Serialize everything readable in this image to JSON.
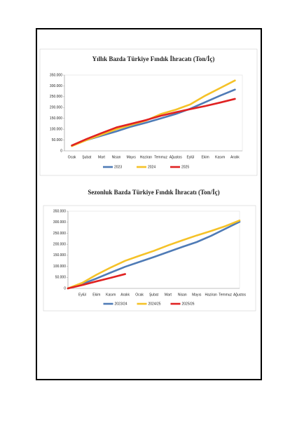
{
  "chart_data": [
    {
      "type": "line",
      "title": "Yıllık Bazda Türkiye Fındık İhracatı (Ton/İç)",
      "categories": [
        "Ocak",
        "Şubat",
        "Mart",
        "Nisan",
        "Mayıs",
        "Haziran",
        "Temmuz",
        "Ağustos",
        "Eylül",
        "Ekim",
        "Kasım",
        "Aralık"
      ],
      "series": [
        {
          "name": "2023",
          "color": "#4f7bb6",
          "values": [
            25000,
            50000,
            70000,
            90000,
            112000,
            130000,
            150000,
            170000,
            195000,
            225000,
            255000,
            283000
          ]
        },
        {
          "name": "2024",
          "color": "#f5c228",
          "values": [
            22000,
            50000,
            75000,
            100000,
            120000,
            140000,
            170000,
            190000,
            215000,
            255000,
            290000,
            325000
          ]
        },
        {
          "name": "2025",
          "color": "#e02222",
          "values": [
            25000,
            55000,
            82000,
            108000,
            125000,
            142000,
            162000,
            178000,
            193000,
            207000,
            223000,
            240000
          ]
        }
      ],
      "ylim": [
        0,
        350000
      ],
      "yticks": [
        0,
        {
          "value": 50000,
          "label": "50.000"
        },
        {
          "value": 100000,
          "label": "100.000"
        },
        {
          "value": 150000,
          "label": "150.000"
        },
        {
          "value": 200000,
          "label": "200.000"
        },
        {
          "value": 250000,
          "label": "250.000"
        },
        {
          "value": 300000,
          "label": "300.000"
        },
        {
          "value": 350000,
          "label": "350.000"
        }
      ],
      "legend": "bottom"
    },
    {
      "type": "line",
      "title": "Sezonluk Bazda Türkiye Fındık İhracatı (Ton/İç)",
      "categories": [
        null,
        "Eylül",
        "Ekim",
        "Kasım",
        "Aralık",
        "Ocak",
        "Şubat",
        "Mart",
        "Nisan",
        "Mayıs",
        "Haziran",
        "Temmuz",
        "Ağustos"
      ],
      "series": [
        {
          "name": "2023/24",
          "color": "#4f7bb6",
          "values": [
            0,
            20000,
            45000,
            72000,
            98000,
            120000,
            142000,
            165000,
            188000,
            210000,
            238000,
            270000,
            302000
          ]
        },
        {
          "name": "2024/25",
          "color": "#f5c228",
          "values": [
            0,
            25000,
            62000,
            95000,
            125000,
            148000,
            170000,
            195000,
            218000,
            240000,
            260000,
            282000,
            308000
          ]
        },
        {
          "name": "2025/26",
          "color": "#e02222",
          "values": [
            0,
            15000,
            32000,
            48000,
            65000,
            null,
            null,
            null,
            null,
            null,
            null,
            null,
            null
          ]
        }
      ],
      "ylim": [
        0,
        350000
      ],
      "yticks": [
        0,
        {
          "value": 50000,
          "label": "50.000"
        },
        {
          "value": 100000,
          "label": "100.000"
        },
        {
          "value": 150000,
          "label": "150.000"
        },
        {
          "value": 200000,
          "label": "200.000"
        },
        {
          "value": 250000,
          "label": "250.000"
        },
        {
          "value": 300000,
          "label": "300.000"
        },
        {
          "value": 350000,
          "label": "350.000"
        }
      ],
      "legend": "bottom"
    }
  ]
}
